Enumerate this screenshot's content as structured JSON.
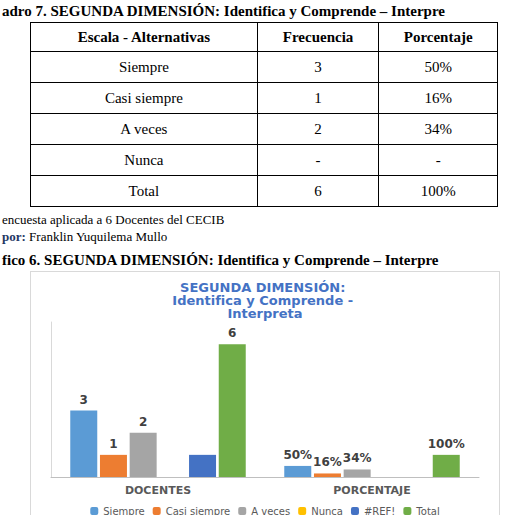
{
  "table_caption": "adro 7. SEGUNDA DIMENSIÓN: Identifica y Comprende – Interpre",
  "table": {
    "header": [
      "Escala - Alternativas",
      "Frecuencia",
      "Porcentaje"
    ],
    "rows": [
      [
        "Siempre",
        "3",
        "50%"
      ],
      [
        "Casi siempre",
        "1",
        "16%"
      ],
      [
        "A veces",
        "2",
        "34%"
      ],
      [
        "Nunca",
        "-",
        "-"
      ],
      [
        "Total",
        "6",
        "100%"
      ]
    ]
  },
  "source": "encuesta aplicada a 6 Docentes del CECIB",
  "author_label": "por:",
  "author": "Franklin Yuquilema Mullo",
  "figure_caption": "fico 6. SEGUNDA DIMENSIÓN: Identifica y Comprende – Interpre",
  "chart_data": {
    "type": "bar",
    "title": "SEGUNDA DIMENSIÓN: Identifica y Comprende - Interpreta",
    "categories": [
      "DOCENTES",
      "PORCENTAJE"
    ],
    "ylim": [
      0,
      7
    ],
    "tick_labels": "x",
    "grid": false,
    "legend": "bottom",
    "data_labels": true,
    "series": [
      {
        "name": "Siempre",
        "color": "#5b9bd5",
        "values": [
          3,
          0.5
        ],
        "value_labels": [
          "3",
          "50%"
        ]
      },
      {
        "name": "Casi siempre",
        "color": "#ed7d31",
        "values": [
          1,
          0.16
        ],
        "value_labels": [
          "1",
          "16%"
        ]
      },
      {
        "name": "A veces",
        "color": "#a5a5a5",
        "values": [
          2,
          0.34
        ],
        "value_labels": [
          "2",
          "34%"
        ]
      },
      {
        "name": "Nunca",
        "color": "#ffc000",
        "values": [
          0,
          0
        ],
        "value_labels": [
          null,
          null
        ]
      },
      {
        "name": "#REF!",
        "color": "#4472c4",
        "values": [
          1,
          null
        ],
        "value_labels": [
          null,
          null
        ]
      },
      {
        "name": "Total",
        "color": "#70ad47",
        "values": [
          6,
          1
        ],
        "value_labels": [
          "6",
          "100%"
        ]
      }
    ]
  }
}
